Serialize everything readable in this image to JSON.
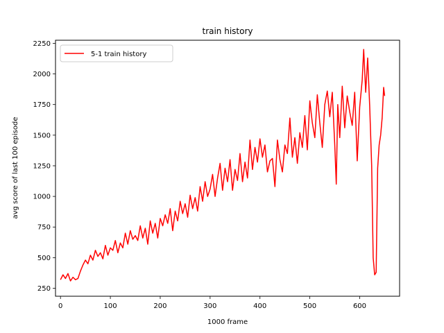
{
  "chart_data": {
    "type": "line",
    "title": "train history",
    "xlabel": "1000 frame",
    "ylabel": "avg score of last 100 episode",
    "xlim": [
      -10,
      680
    ],
    "ylim": [
      185,
      2275
    ],
    "xticks": [
      0,
      100,
      200,
      300,
      400,
      500,
      600
    ],
    "xtick_labels": [
      "0",
      "100",
      "200",
      "300",
      "400",
      "500",
      "600"
    ],
    "yticks": [
      250,
      500,
      750,
      1000,
      1250,
      1500,
      1750,
      2000,
      2250
    ],
    "ytick_labels": [
      "250",
      "500",
      "750",
      "1000",
      "1250",
      "1500",
      "1750",
      "2000",
      "2250"
    ],
    "grid": false,
    "legend": {
      "position": "upper-left",
      "entries": [
        "5-1 train history"
      ]
    },
    "series": [
      {
        "name": "5-1 train history",
        "color": "#ff0000",
        "x": [
          0,
          5,
          10,
          15,
          20,
          25,
          30,
          35,
          40,
          45,
          50,
          55,
          60,
          65,
          70,
          75,
          80,
          85,
          90,
          95,
          100,
          105,
          110,
          115,
          120,
          125,
          130,
          135,
          140,
          145,
          150,
          155,
          160,
          165,
          170,
          175,
          180,
          185,
          190,
          195,
          200,
          205,
          210,
          215,
          220,
          225,
          230,
          235,
          240,
          245,
          250,
          255,
          260,
          265,
          270,
          275,
          280,
          285,
          290,
          295,
          300,
          305,
          310,
          315,
          320,
          325,
          330,
          335,
          340,
          345,
          350,
          355,
          360,
          365,
          370,
          375,
          380,
          385,
          390,
          395,
          400,
          405,
          410,
          415,
          420,
          425,
          430,
          435,
          440,
          445,
          450,
          455,
          460,
          465,
          470,
          475,
          480,
          485,
          490,
          495,
          500,
          505,
          510,
          515,
          520,
          525,
          530,
          535,
          540,
          545,
          550,
          553,
          556,
          560,
          565,
          570,
          575,
          580,
          585,
          590,
          595,
          600,
          605,
          608,
          612,
          616,
          620,
          624,
          627,
          630,
          633,
          636,
          639,
          642,
          645,
          648,
          650
        ],
        "y": [
          320,
          360,
          330,
          370,
          310,
          340,
          320,
          330,
          390,
          440,
          480,
          450,
          520,
          480,
          560,
          510,
          540,
          490,
          600,
          520,
          580,
          560,
          640,
          540,
          620,
          580,
          700,
          610,
          720,
          650,
          680,
          640,
          760,
          660,
          740,
          610,
          800,
          700,
          780,
          660,
          820,
          760,
          850,
          780,
          900,
          720,
          880,
          800,
          960,
          860,
          940,
          830,
          1010,
          900,
          990,
          880,
          1080,
          960,
          1120,
          1000,
          1060,
          1180,
          1000,
          1150,
          1270,
          1050,
          1230,
          1120,
          1300,
          1050,
          1220,
          1130,
          1350,
          1120,
          1280,
          1150,
          1460,
          1220,
          1400,
          1280,
          1470,
          1320,
          1420,
          1200,
          1290,
          1310,
          1080,
          1460,
          1300,
          1200,
          1420,
          1350,
          1640,
          1320,
          1480,
          1270,
          1520,
          1400,
          1660,
          1380,
          1780,
          1600,
          1480,
          1830,
          1600,
          1400,
          1750,
          1860,
          1650,
          1850,
          1420,
          1100,
          1750,
          1480,
          1900,
          1560,
          1820,
          1690,
          1580,
          1850,
          1290,
          1730,
          1950,
          2200,
          1850,
          2130,
          1740,
          1250,
          500,
          360,
          380,
          1230,
          1420,
          1500,
          1640,
          1890,
          1820
        ]
      }
    ]
  }
}
